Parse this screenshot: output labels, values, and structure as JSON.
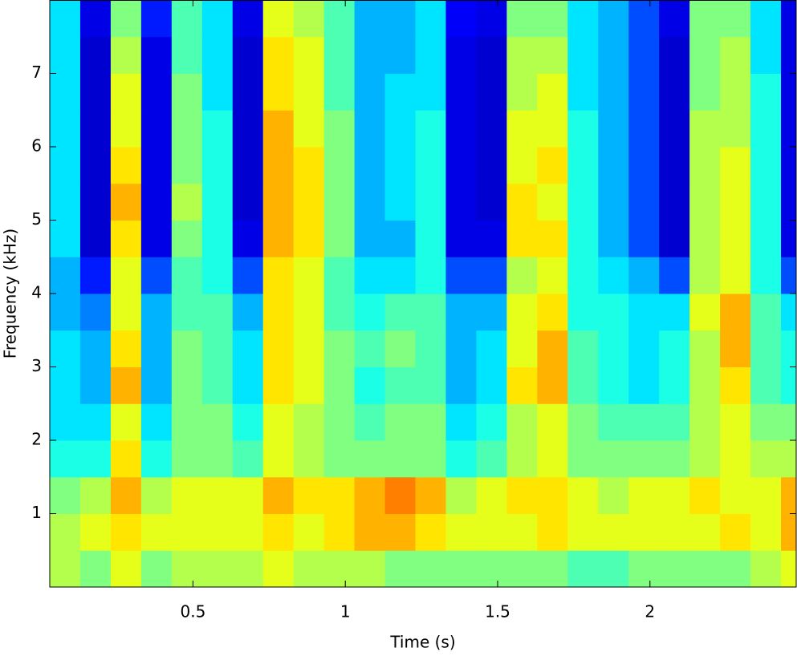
{
  "chart_data": {
    "type": "heatmap",
    "xlabel": "Time (s)",
    "ylabel": "Frequency (kHz)",
    "xlim": [
      0.03,
      2.48
    ],
    "ylim": [
      0,
      8
    ],
    "xticks": [
      0.5,
      1,
      1.5,
      2
    ],
    "yticks": [
      1,
      2,
      3,
      4,
      5,
      6,
      7
    ],
    "colormap": "jet",
    "zlim": [
      0,
      1
    ],
    "x": [
      0.08,
      0.18,
      0.28,
      0.38,
      0.48,
      0.58,
      0.68,
      0.78,
      0.88,
      0.98,
      1.08,
      1.18,
      1.28,
      1.38,
      1.48,
      1.58,
      1.68,
      1.78,
      1.88,
      1.98,
      2.08,
      2.18,
      2.28,
      2.38,
      2.48
    ],
    "y": [
      0.25,
      0.75,
      1.25,
      1.75,
      2.25,
      2.75,
      3.25,
      3.75,
      4.25,
      4.75,
      5.25,
      5.75,
      6.25,
      6.75,
      7.25,
      7.75
    ],
    "z": [
      [
        0.55,
        0.5,
        0.6,
        0.5,
        0.55,
        0.55,
        0.55,
        0.6,
        0.55,
        0.55,
        0.55,
        0.5,
        0.5,
        0.5,
        0.5,
        0.5,
        0.5,
        0.45,
        0.45,
        0.5,
        0.5,
        0.5,
        0.5,
        0.55,
        0.6
      ],
      [
        0.55,
        0.6,
        0.65,
        0.6,
        0.6,
        0.6,
        0.6,
        0.65,
        0.6,
        0.65,
        0.7,
        0.7,
        0.65,
        0.6,
        0.6,
        0.6,
        0.65,
        0.6,
        0.6,
        0.6,
        0.6,
        0.6,
        0.65,
        0.6,
        0.7
      ],
      [
        0.5,
        0.55,
        0.7,
        0.55,
        0.6,
        0.6,
        0.6,
        0.7,
        0.65,
        0.65,
        0.7,
        0.75,
        0.7,
        0.55,
        0.6,
        0.65,
        0.65,
        0.6,
        0.55,
        0.6,
        0.6,
        0.65,
        0.6,
        0.6,
        0.7
      ],
      [
        0.4,
        0.4,
        0.65,
        0.4,
        0.5,
        0.5,
        0.45,
        0.6,
        0.55,
        0.5,
        0.5,
        0.5,
        0.5,
        0.4,
        0.45,
        0.55,
        0.6,
        0.5,
        0.5,
        0.5,
        0.5,
        0.55,
        0.6,
        0.55,
        0.55
      ],
      [
        0.35,
        0.35,
        0.6,
        0.35,
        0.5,
        0.5,
        0.4,
        0.6,
        0.55,
        0.5,
        0.45,
        0.5,
        0.5,
        0.35,
        0.4,
        0.55,
        0.6,
        0.5,
        0.45,
        0.45,
        0.45,
        0.55,
        0.6,
        0.5,
        0.5
      ],
      [
        0.35,
        0.3,
        0.7,
        0.3,
        0.5,
        0.45,
        0.35,
        0.65,
        0.6,
        0.5,
        0.4,
        0.45,
        0.45,
        0.3,
        0.35,
        0.65,
        0.7,
        0.45,
        0.4,
        0.35,
        0.4,
        0.55,
        0.65,
        0.45,
        0.4
      ],
      [
        0.35,
        0.3,
        0.65,
        0.3,
        0.5,
        0.45,
        0.35,
        0.65,
        0.6,
        0.5,
        0.45,
        0.5,
        0.45,
        0.3,
        0.35,
        0.6,
        0.7,
        0.45,
        0.4,
        0.35,
        0.4,
        0.55,
        0.7,
        0.45,
        0.4
      ],
      [
        0.3,
        0.25,
        0.6,
        0.3,
        0.45,
        0.45,
        0.3,
        0.65,
        0.6,
        0.45,
        0.4,
        0.45,
        0.45,
        0.3,
        0.3,
        0.6,
        0.65,
        0.4,
        0.4,
        0.35,
        0.35,
        0.6,
        0.7,
        0.45,
        0.35
      ],
      [
        0.3,
        0.15,
        0.6,
        0.2,
        0.45,
        0.4,
        0.2,
        0.65,
        0.6,
        0.45,
        0.35,
        0.35,
        0.4,
        0.2,
        0.2,
        0.55,
        0.6,
        0.4,
        0.35,
        0.3,
        0.2,
        0.55,
        0.6,
        0.4,
        0.2
      ],
      [
        0.35,
        0.08,
        0.65,
        0.1,
        0.5,
        0.4,
        0.1,
        0.7,
        0.65,
        0.5,
        0.3,
        0.3,
        0.4,
        0.1,
        0.1,
        0.65,
        0.65,
        0.4,
        0.3,
        0.2,
        0.08,
        0.55,
        0.6,
        0.4,
        0.1
      ],
      [
        0.35,
        0.08,
        0.7,
        0.1,
        0.55,
        0.4,
        0.08,
        0.7,
        0.65,
        0.5,
        0.3,
        0.35,
        0.4,
        0.1,
        0.08,
        0.65,
        0.6,
        0.4,
        0.3,
        0.2,
        0.08,
        0.55,
        0.6,
        0.4,
        0.1
      ],
      [
        0.35,
        0.08,
        0.65,
        0.1,
        0.5,
        0.4,
        0.08,
        0.7,
        0.65,
        0.5,
        0.3,
        0.35,
        0.4,
        0.1,
        0.08,
        0.6,
        0.65,
        0.4,
        0.3,
        0.2,
        0.08,
        0.55,
        0.6,
        0.4,
        0.1
      ],
      [
        0.35,
        0.08,
        0.6,
        0.1,
        0.5,
        0.4,
        0.08,
        0.7,
        0.6,
        0.5,
        0.3,
        0.35,
        0.4,
        0.1,
        0.08,
        0.6,
        0.6,
        0.4,
        0.3,
        0.2,
        0.08,
        0.55,
        0.55,
        0.4,
        0.1
      ],
      [
        0.35,
        0.08,
        0.6,
        0.1,
        0.5,
        0.35,
        0.08,
        0.65,
        0.6,
        0.45,
        0.3,
        0.35,
        0.35,
        0.1,
        0.08,
        0.55,
        0.6,
        0.35,
        0.3,
        0.2,
        0.08,
        0.5,
        0.55,
        0.4,
        0.1
      ],
      [
        0.35,
        0.08,
        0.55,
        0.1,
        0.45,
        0.35,
        0.08,
        0.65,
        0.6,
        0.45,
        0.3,
        0.3,
        0.35,
        0.1,
        0.08,
        0.55,
        0.55,
        0.35,
        0.3,
        0.2,
        0.08,
        0.5,
        0.55,
        0.35,
        0.1
      ],
      [
        0.35,
        0.1,
        0.5,
        0.15,
        0.45,
        0.35,
        0.1,
        0.6,
        0.55,
        0.45,
        0.3,
        0.3,
        0.35,
        0.12,
        0.1,
        0.5,
        0.5,
        0.35,
        0.3,
        0.2,
        0.1,
        0.5,
        0.5,
        0.35,
        0.1
      ]
    ]
  }
}
